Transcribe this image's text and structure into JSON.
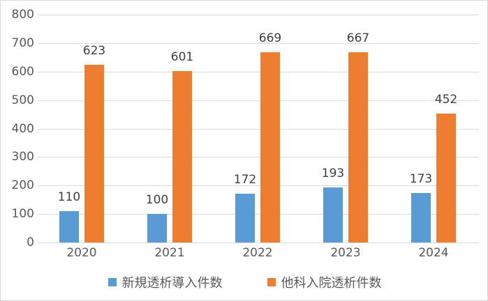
{
  "chart_data": {
    "type": "bar",
    "title": "",
    "xlabel": "",
    "ylabel": "",
    "categories": [
      "2020",
      "2021",
      "2022",
      "2023",
      "2024"
    ],
    "series": [
      {
        "name": "新規透析導入件数",
        "color": "#5b9bd5",
        "values": [
          110,
          100,
          172,
          193,
          173
        ]
      },
      {
        "name": "他科入院透析件数",
        "color": "#ed7d31",
        "values": [
          623,
          601,
          669,
          667,
          452
        ]
      }
    ],
    "ylim": [
      0,
      800
    ],
    "yticks": [
      "0",
      "100",
      "200",
      "300",
      "400",
      "500",
      "600",
      "700",
      "800"
    ],
    "grid": true,
    "data_labels": true,
    "legend_position": "bottom"
  }
}
